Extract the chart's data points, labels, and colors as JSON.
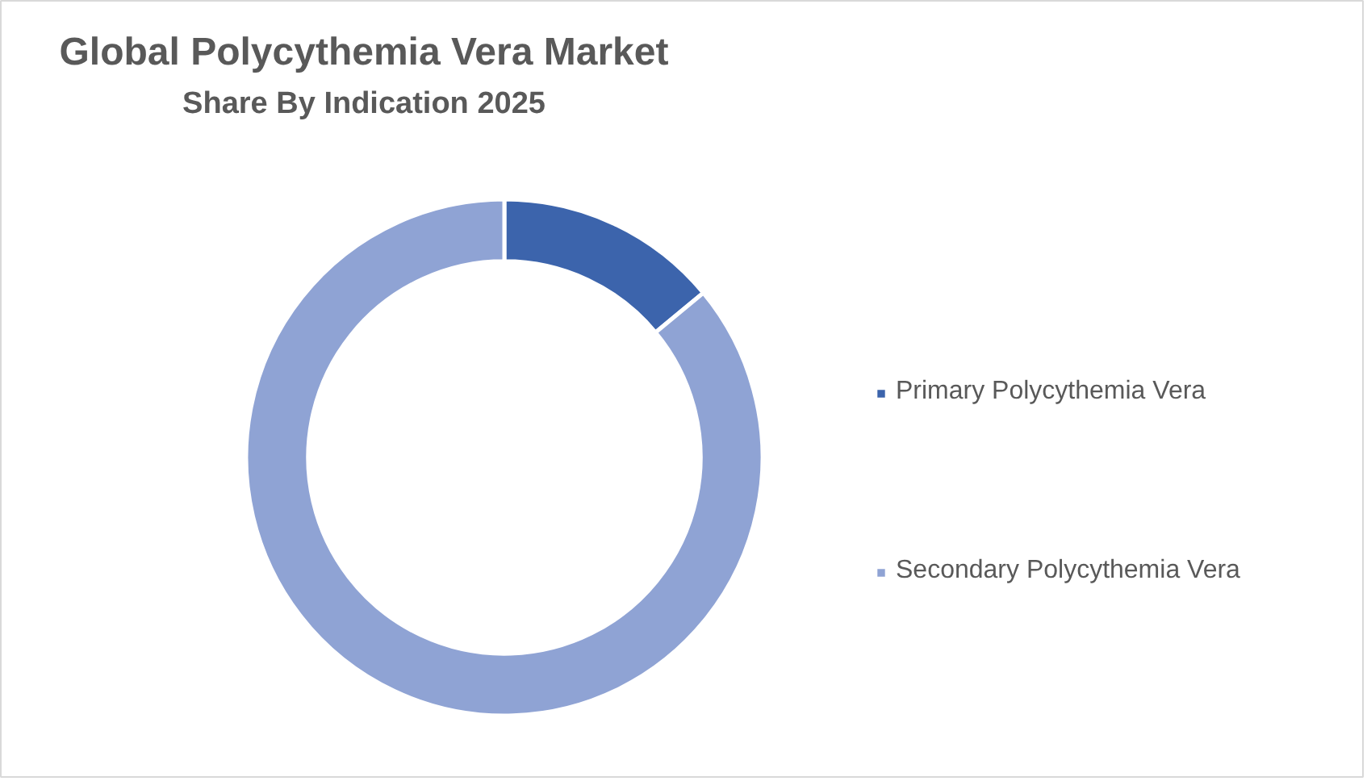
{
  "chart_data": {
    "type": "donut",
    "title": "Global Polycythemia Vera Market",
    "subtitle": "Share By Indication 2025",
    "categories": [
      "Primary Polycythemia Vera",
      "Secondary Polycythemia Vera"
    ],
    "values": [
      14,
      86
    ],
    "colors": [
      "#3c64ac",
      "#8fa3d4"
    ],
    "legend": "right"
  }
}
